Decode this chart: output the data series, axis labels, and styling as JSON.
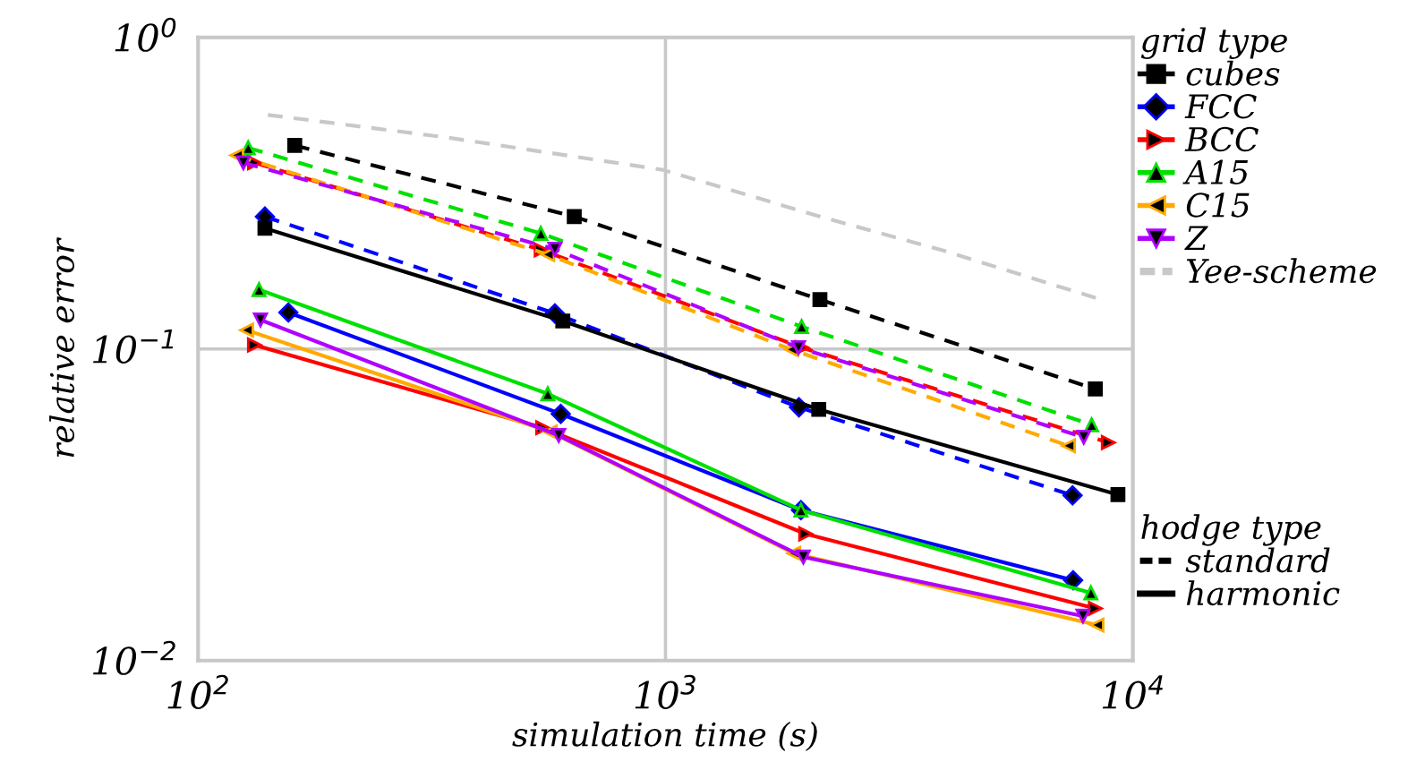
{
  "chart_data": {
    "type": "line",
    "xlabel": "simulation time (s)",
    "ylabel": "relative error",
    "legend_title": "grid type",
    "log": "xy",
    "grid": true,
    "legend": "right",
    "xlim": [
      100,
      10000
    ],
    "ylim": [
      0.01,
      1
    ],
    "xticks": [
      {
        "value": 100,
        "label": "10$^{2}$"
      },
      {
        "value": 1000,
        "label": "10$^{3}$"
      },
      {
        "value": 10000,
        "label": "10$^{4}$"
      }
    ],
    "yticks": [
      {
        "value": 0.01,
        "label": "10$^{−2}$"
      },
      {
        "value": 0.1,
        "label": "10$^{−1}$"
      },
      {
        "value": 1,
        "label": "10$^{0}$"
      }
    ],
    "annotations": [
      "hodge type",
      "standard",
      "harmonic"
    ],
    "series": [
      {
        "color": "#000000",
        "marker": "square",
        "line_style": "dashed",
        "x": [
          161,
          638,
          2140,
          8310
        ],
        "values": [
          0.45,
          0.266,
          0.144,
          0.0744
        ]
      },
      {
        "color": "#0000ff",
        "marker": "diamond",
        "line_style": "dashed",
        "x": [
          139,
          580,
          1930,
          7430
        ],
        "values": [
          0.266,
          0.13,
          0.065,
          0.0339
        ]
      },
      {
        "color": "#ff0000",
        "marker": "triangle-right",
        "line_style": "dashed",
        "x": [
          132,
          542,
          1960,
          8860
        ],
        "values": [
          0.396,
          0.208,
          0.101,
          0.0501
        ]
      },
      {
        "color": "#00e000",
        "marker": "triangle",
        "line_style": "dashed",
        "x": [
          128,
          541,
          1955,
          8160
        ],
        "values": [
          0.442,
          0.235,
          0.118,
          0.0571
        ]
      },
      {
        "color": "#ffaa00",
        "marker": "triangle-left",
        "line_style": "dashed",
        "x": [
          121,
          560,
          1860,
          7280
        ],
        "values": [
          0.418,
          0.201,
          0.0996,
          0.0489
        ]
      },
      {
        "color": "#b000ff",
        "marker": "triangle-down",
        "line_style": "dashed",
        "x": [
          125,
          580,
          1926,
          7850
        ],
        "values": [
          0.396,
          0.209,
          0.101,
          0.0521
        ]
      },
      {
        "name": "cubes",
        "color": "#000000",
        "marker": "square",
        "line_style": "solid",
        "x": [
          139,
          603,
          2128,
          9290
        ],
        "values": [
          0.244,
          0.123,
          0.064,
          0.0341
        ]
      },
      {
        "name": "FCC",
        "color": "#0000ff",
        "marker": "diamond",
        "line_style": "solid",
        "x": [
          156,
          597,
          1949,
          7450
        ],
        "values": [
          0.131,
          0.0619,
          0.0304,
          0.0181
        ]
      },
      {
        "name": "BCC",
        "color": "#ff0000",
        "marker": "triangle-right",
        "line_style": "solid",
        "x": [
          132,
          546,
          1995,
          8310
        ],
        "values": [
          0.103,
          0.0559,
          0.0255,
          0.0147
        ]
      },
      {
        "name": "A15",
        "color": "#00e000",
        "marker": "triangle",
        "line_style": "solid",
        "x": [
          135,
          560,
          1949,
          8130
        ],
        "values": [
          0.155,
          0.0718,
          0.0304,
          0.0165
        ]
      },
      {
        "name": "C15",
        "color": "#ffaa00",
        "marker": "triangle-left",
        "line_style": "solid",
        "x": [
          127,
          567,
          1881,
          8380
        ],
        "values": [
          0.115,
          0.0542,
          0.0221,
          0.013
        ]
      },
      {
        "name": "Z",
        "color": "#b000ff",
        "marker": "triangle-down",
        "line_style": "solid",
        "x": [
          136,
          591,
          1972,
          7820
        ],
        "values": [
          0.124,
          0.0528,
          0.0215,
          0.0139
        ]
      },
      {
        "name": "Yee-scheme",
        "color": "#c8c8c8",
        "marker": "none",
        "line_style": "dashed",
        "x": [
          141,
          342,
          985,
          2180,
          3930,
          8430
        ],
        "values": [
          0.564,
          0.477,
          0.376,
          0.264,
          0.207,
          0.145
        ]
      }
    ]
  }
}
